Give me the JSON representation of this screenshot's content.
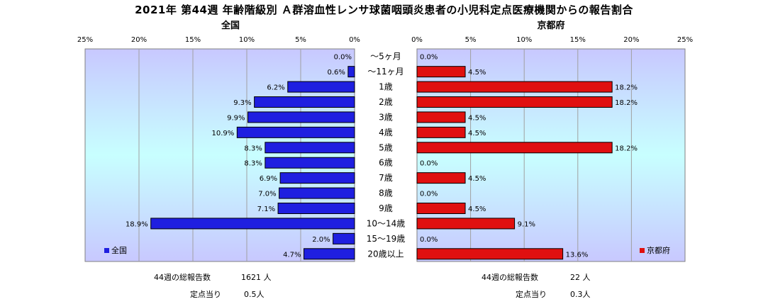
{
  "title": "2021年 第44週 年齢階級別 Ａ群溶血性レンサ球菌咽頭炎患者の小児科定点医療機関からの報告割合",
  "colors": {
    "left_bar": "#1f1fe0",
    "right_bar": "#e01010",
    "bar_outline": "#000000",
    "plot_top": "#c8c8ff",
    "plot_mid": "#c8ffff",
    "plot_bottom": "#c8c8ff"
  },
  "chart_data": [
    {
      "type": "bar",
      "orientation": "horizontal-reversed",
      "title": "全国",
      "xlim": [
        0,
        25
      ],
      "ticks": [
        "25%",
        "20%",
        "15%",
        "10%",
        "5%",
        "0%"
      ],
      "tick_values": [
        25,
        20,
        15,
        10,
        5,
        0
      ],
      "grid": true,
      "legend": "bottom-left",
      "categories": [
        "～5ヶ月",
        "～11ヶ月",
        "1歳",
        "2歳",
        "3歳",
        "4歳",
        "5歳",
        "6歳",
        "7歳",
        "8歳",
        "9歳",
        "10～14歳",
        "15～19歳",
        "20歳以上"
      ],
      "series": [
        {
          "name": "全国",
          "values": [
            0.0,
            0.6,
            6.2,
            9.3,
            9.9,
            10.9,
            8.3,
            8.3,
            6.9,
            7.0,
            7.1,
            18.9,
            2.0,
            4.7
          ],
          "labels": [
            "0.0%",
            "0.6%",
            "6.2%",
            "9.3%",
            "9.9%",
            "10.9%",
            "8.3%",
            "8.3%",
            "6.9%",
            "7.0%",
            "7.1%",
            "18.9%",
            "2.0%",
            "4.7%"
          ]
        }
      ]
    },
    {
      "type": "bar",
      "orientation": "horizontal",
      "title": "京都府",
      "xlim": [
        0,
        25
      ],
      "ticks": [
        "0%",
        "5%",
        "10%",
        "15%",
        "20%",
        "25%"
      ],
      "tick_values": [
        0,
        5,
        10,
        15,
        20,
        25
      ],
      "grid": true,
      "legend": "bottom-right",
      "categories": [
        "～5ヶ月",
        "～11ヶ月",
        "1歳",
        "2歳",
        "3歳",
        "4歳",
        "5歳",
        "6歳",
        "7歳",
        "8歳",
        "9歳",
        "10～14歳",
        "15～19歳",
        "20歳以上"
      ],
      "series": [
        {
          "name": "京都府",
          "values": [
            0.0,
            4.5,
            18.2,
            18.2,
            4.5,
            4.5,
            18.2,
            0.0,
            4.5,
            0.0,
            4.5,
            9.1,
            0.0,
            13.6
          ],
          "labels": [
            "0.0%",
            "4.5%",
            "18.2%",
            "18.2%",
            "4.5%",
            "4.5%",
            "18.2%",
            "0.0%",
            "4.5%",
            "0.0%",
            "4.5%",
            "9.1%",
            "0.0%",
            "13.6%"
          ]
        }
      ]
    }
  ],
  "footer": {
    "left": {
      "total_label": "44週の総報告数",
      "total_value": "1621 人",
      "per_label": "定点当り",
      "per_value": "0.5人"
    },
    "right": {
      "total_label": "44週の総報告数",
      "total_value": "22 人",
      "per_label": "定点当り",
      "per_value": "0.3人"
    }
  }
}
